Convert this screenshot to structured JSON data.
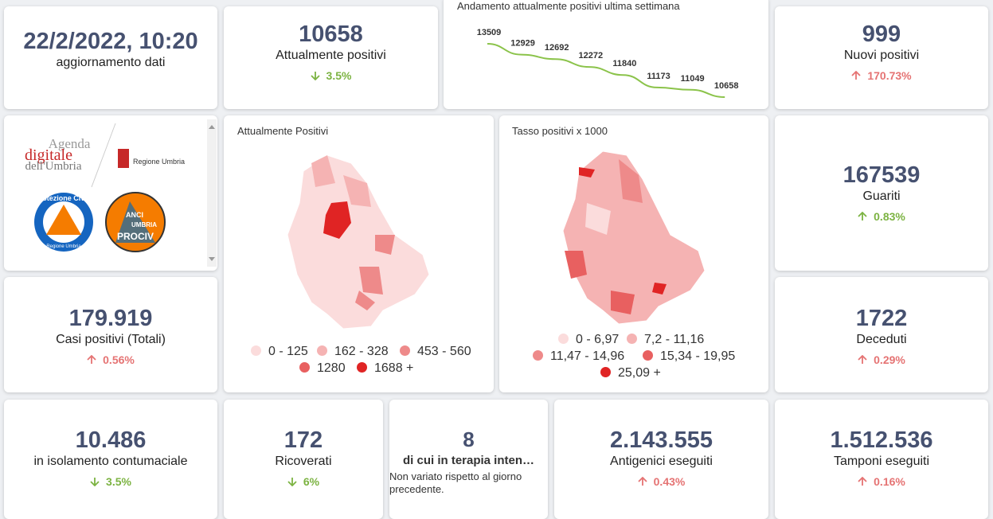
{
  "update": {
    "datetime": "22/2/2022, 10:20",
    "label": "aggiornamento dati"
  },
  "trend_chart": {
    "chart_data": {
      "type": "line",
      "title": "Andamento attualmente positivi ultima settimana",
      "values": [
        13509,
        12929,
        12692,
        12272,
        11840,
        11173,
        11049,
        10658
      ],
      "color": "#8bc34a"
    }
  },
  "logos": {
    "agenda_1": "Agenda",
    "agenda_2": "digitale",
    "agenda_3": "dell'Umbria",
    "region": "Regione Umbria",
    "civil_protection": "Protezione Civile",
    "civil_protection_sub": "Regione Umbria",
    "anci_1": "ANCI",
    "anci_2": "UMBRIA",
    "anci_3": "PROCIV"
  },
  "kpis": [
    {
      "value": "10658",
      "label": "Attualmente positivi",
      "change": "3.5%",
      "direction": "down",
      "color": "#7cb342"
    },
    {
      "value": "999",
      "label": "Nuovi positivi",
      "change": "170.73%",
      "direction": "up",
      "color": "#e57373"
    },
    {
      "value": "167539",
      "label": "Guariti",
      "change": "0.83%",
      "direction": "up",
      "color": "#7cb342"
    },
    {
      "value": "179.919",
      "label": "Casi positivi (Totali)",
      "change": "0.56%",
      "direction": "up",
      "color": "#e57373"
    },
    {
      "value": "1722",
      "label": "Deceduti",
      "change": "0.29%",
      "direction": "up",
      "color": "#e57373"
    },
    {
      "value": "10.486",
      "label": "in isolamento contumaciale",
      "change": "3.5%",
      "direction": "down",
      "color": "#7cb342"
    },
    {
      "value": "172",
      "label": "Ricoverati",
      "change": "6%",
      "direction": "down",
      "color": "#7cb342"
    },
    {
      "value": "2.143.555",
      "label": "Antigenici eseguiti",
      "change": "0.43%",
      "direction": "up",
      "color": "#e57373"
    },
    {
      "value": "1.512.536",
      "label": "Tamponi eseguiti",
      "change": "0.16%",
      "direction": "up",
      "color": "#e57373"
    }
  ],
  "intensive": {
    "value": "8",
    "label": "di cui in terapia inten…",
    "note": "Non variato rispetto al giorno precedente."
  },
  "maps": [
    {
      "title": "Attualmente Positivi",
      "legend": [
        {
          "label": "0 - 125",
          "color": "#fbdcdc"
        },
        {
          "label": "162 - 328",
          "color": "#f5b3b3"
        },
        {
          "label": "453 - 560",
          "color": "#ee8a8a"
        },
        {
          "label": "1280",
          "color": "#e86060"
        },
        {
          "label": "1688 +",
          "color": "#e02424"
        }
      ]
    },
    {
      "title": "Tasso positivi x 1000",
      "legend": [
        {
          "label": "0 - 6,97",
          "color": "#fbdcdc"
        },
        {
          "label": "7,2 - 11,16",
          "color": "#f5b3b3"
        },
        {
          "label": "11,47 - 14,96",
          "color": "#ee8a8a"
        },
        {
          "label": "15,34 - 19,95",
          "color": "#e86060"
        },
        {
          "label": "25,09 +",
          "color": "#e02424"
        }
      ]
    }
  ]
}
